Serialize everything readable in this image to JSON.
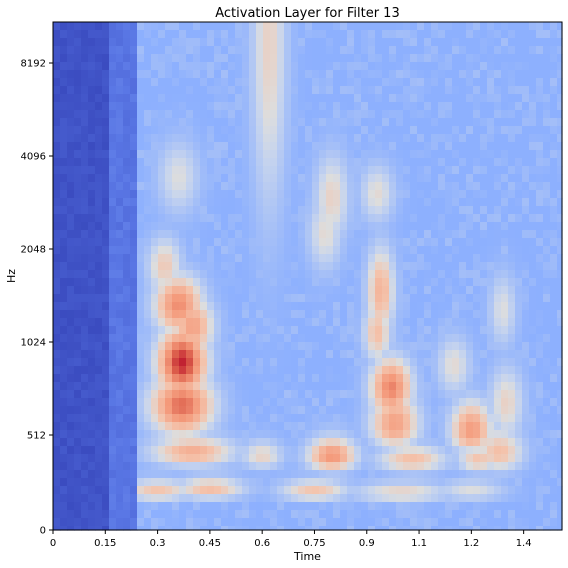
{
  "chart_data": {
    "type": "heatmap",
    "title": "Activation Layer for Filter 13",
    "xlabel": "Time",
    "ylabel": "Hz",
    "xlim": [
      0,
      1.46
    ],
    "x_ticks": [
      {
        "value": 0,
        "label": "0"
      },
      {
        "value": 0.15,
        "label": "0.15"
      },
      {
        "value": 0.3,
        "label": "0.3"
      },
      {
        "value": 0.45,
        "label": "0.45"
      },
      {
        "value": 0.6,
        "label": "0.6"
      },
      {
        "value": 0.75,
        "label": "0.75"
      },
      {
        "value": 0.9,
        "label": "0.9"
      },
      {
        "value": 1.05,
        "label": "1.1"
      },
      {
        "value": 1.2,
        "label": "1.2"
      },
      {
        "value": 1.35,
        "label": "1.4"
      }
    ],
    "y_scale": "log2",
    "y_ticks": [
      {
        "value": 0,
        "label": "0"
      },
      {
        "value": 512,
        "label": "512"
      },
      {
        "value": 1024,
        "label": "1024"
      },
      {
        "value": 2048,
        "label": "2048"
      },
      {
        "value": 4096,
        "label": "4096"
      },
      {
        "value": 8192,
        "label": "8192"
      }
    ],
    "colormap": "coolwarm",
    "colors": {
      "low": "#3b4cc0",
      "mid": "#dddddd",
      "high": "#b40426"
    },
    "background_level": 0.3,
    "features": [
      {
        "kind": "band",
        "t_start": 0.0,
        "t_end": 0.17,
        "f_low": 0,
        "f_high": 11025,
        "level": 0.0
      },
      {
        "kind": "band",
        "t_start": 0.17,
        "t_end": 0.24,
        "f_low": 0,
        "f_high": 11025,
        "level": 0.12
      },
      {
        "kind": "blob",
        "time": 0.62,
        "freq": 9500,
        "spread_t": 0.05,
        "spread_f": 0.45,
        "level": 0.55
      },
      {
        "kind": "blob",
        "time": 0.36,
        "freq": 3500,
        "spread_t": 0.06,
        "spread_f": 0.1,
        "level": 0.5
      },
      {
        "kind": "blob",
        "time": 0.32,
        "freq": 1800,
        "spread_t": 0.05,
        "spread_f": 0.08,
        "level": 0.58
      },
      {
        "kind": "blob",
        "time": 0.36,
        "freq": 1350,
        "spread_t": 0.07,
        "spread_f": 0.08,
        "level": 0.78
      },
      {
        "kind": "blob",
        "time": 0.4,
        "freq": 1150,
        "spread_t": 0.06,
        "spread_f": 0.08,
        "level": 0.72
      },
      {
        "kind": "blob",
        "time": 0.37,
        "freq": 880,
        "spread_t": 0.07,
        "spread_f": 0.09,
        "level": 0.96
      },
      {
        "kind": "blob",
        "time": 0.37,
        "freq": 640,
        "spread_t": 0.09,
        "spread_f": 0.08,
        "level": 0.85
      },
      {
        "kind": "blob",
        "time": 0.4,
        "freq": 420,
        "spread_t": 0.12,
        "spread_f": 0.07,
        "level": 0.68
      },
      {
        "kind": "blob",
        "time": 0.3,
        "freq": 210,
        "spread_t": 0.1,
        "spread_f": 0.1,
        "level": 0.6
      },
      {
        "kind": "blob",
        "time": 0.45,
        "freq": 220,
        "spread_t": 0.1,
        "spread_f": 0.1,
        "level": 0.62
      },
      {
        "kind": "blob",
        "time": 0.6,
        "freq": 400,
        "spread_t": 0.06,
        "spread_f": 0.07,
        "level": 0.55
      },
      {
        "kind": "blob",
        "time": 0.8,
        "freq": 400,
        "spread_t": 0.07,
        "spread_f": 0.08,
        "level": 0.76
      },
      {
        "kind": "blob",
        "time": 0.8,
        "freq": 3000,
        "spread_t": 0.05,
        "spread_f": 0.12,
        "level": 0.55
      },
      {
        "kind": "blob",
        "time": 0.78,
        "freq": 2300,
        "spread_t": 0.05,
        "spread_f": 0.1,
        "level": 0.52
      },
      {
        "kind": "blob",
        "time": 0.93,
        "freq": 3100,
        "spread_t": 0.05,
        "spread_f": 0.08,
        "level": 0.52
      },
      {
        "kind": "blob",
        "time": 0.94,
        "freq": 1500,
        "spread_t": 0.04,
        "spread_f": 0.12,
        "level": 0.66
      },
      {
        "kind": "blob",
        "time": 0.93,
        "freq": 1100,
        "spread_t": 0.04,
        "spread_f": 0.08,
        "level": 0.62
      },
      {
        "kind": "blob",
        "time": 0.97,
        "freq": 730,
        "spread_t": 0.06,
        "spread_f": 0.08,
        "level": 0.8
      },
      {
        "kind": "blob",
        "time": 0.98,
        "freq": 560,
        "spread_t": 0.07,
        "spread_f": 0.08,
        "level": 0.72
      },
      {
        "kind": "blob",
        "time": 1.03,
        "freq": 380,
        "spread_t": 0.1,
        "spread_f": 0.07,
        "level": 0.62
      },
      {
        "kind": "blob",
        "time": 1.2,
        "freq": 530,
        "spread_t": 0.06,
        "spread_f": 0.08,
        "level": 0.74
      },
      {
        "kind": "blob",
        "time": 1.28,
        "freq": 420,
        "spread_t": 0.07,
        "spread_f": 0.1,
        "level": 0.62
      },
      {
        "kind": "blob",
        "time": 1.22,
        "freq": 380,
        "spread_t": 0.06,
        "spread_f": 0.07,
        "level": 0.6
      },
      {
        "kind": "blob",
        "time": 1.3,
        "freq": 650,
        "spread_t": 0.05,
        "spread_f": 0.1,
        "level": 0.55
      },
      {
        "kind": "blob",
        "time": 1.15,
        "freq": 860,
        "spread_t": 0.05,
        "spread_f": 0.08,
        "level": 0.52
      },
      {
        "kind": "blob",
        "time": 1.29,
        "freq": 1300,
        "spread_t": 0.04,
        "spread_f": 0.1,
        "level": 0.5
      },
      {
        "kind": "blob",
        "time": 0.75,
        "freq": 210,
        "spread_t": 0.1,
        "spread_f": 0.1,
        "level": 0.6
      },
      {
        "kind": "blob",
        "time": 1.0,
        "freq": 200,
        "spread_t": 0.14,
        "spread_f": 0.1,
        "level": 0.55
      },
      {
        "kind": "blob",
        "time": 1.2,
        "freq": 210,
        "spread_t": 0.1,
        "spread_f": 0.1,
        "level": 0.5
      }
    ]
  }
}
